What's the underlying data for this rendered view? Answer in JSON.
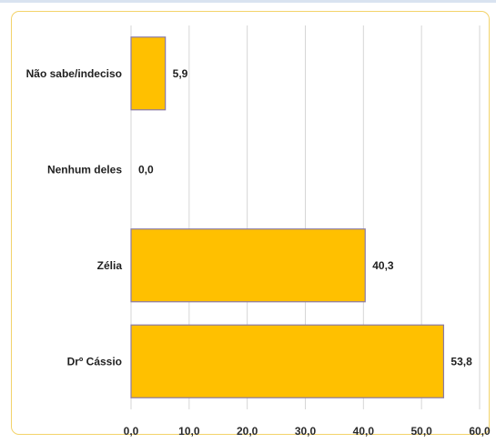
{
  "colors": {
    "bar_fill": "#ffc000",
    "bar_stroke": "#8a7aa6",
    "grid": "#d6d6d6",
    "frame": "#f3d36a"
  },
  "chart_data": {
    "type": "bar",
    "orientation": "horizontal",
    "categories": [
      "Não sabe/indeciso",
      "Nenhum deles",
      "Zélia",
      "Drº Cássio"
    ],
    "values": [
      5.9,
      0.0,
      40.3,
      53.8
    ],
    "value_labels": [
      "5,9",
      "0,0",
      "40,3",
      "53,8"
    ],
    "xlim": [
      0,
      60
    ],
    "x_ticks": [
      0,
      10,
      20,
      30,
      40,
      50,
      60
    ],
    "x_tick_labels": [
      "0,0",
      "10,0",
      "20,0",
      "30,0",
      "40,0",
      "50,0",
      "60,0"
    ],
    "grid": "vertical",
    "legend": "none"
  }
}
